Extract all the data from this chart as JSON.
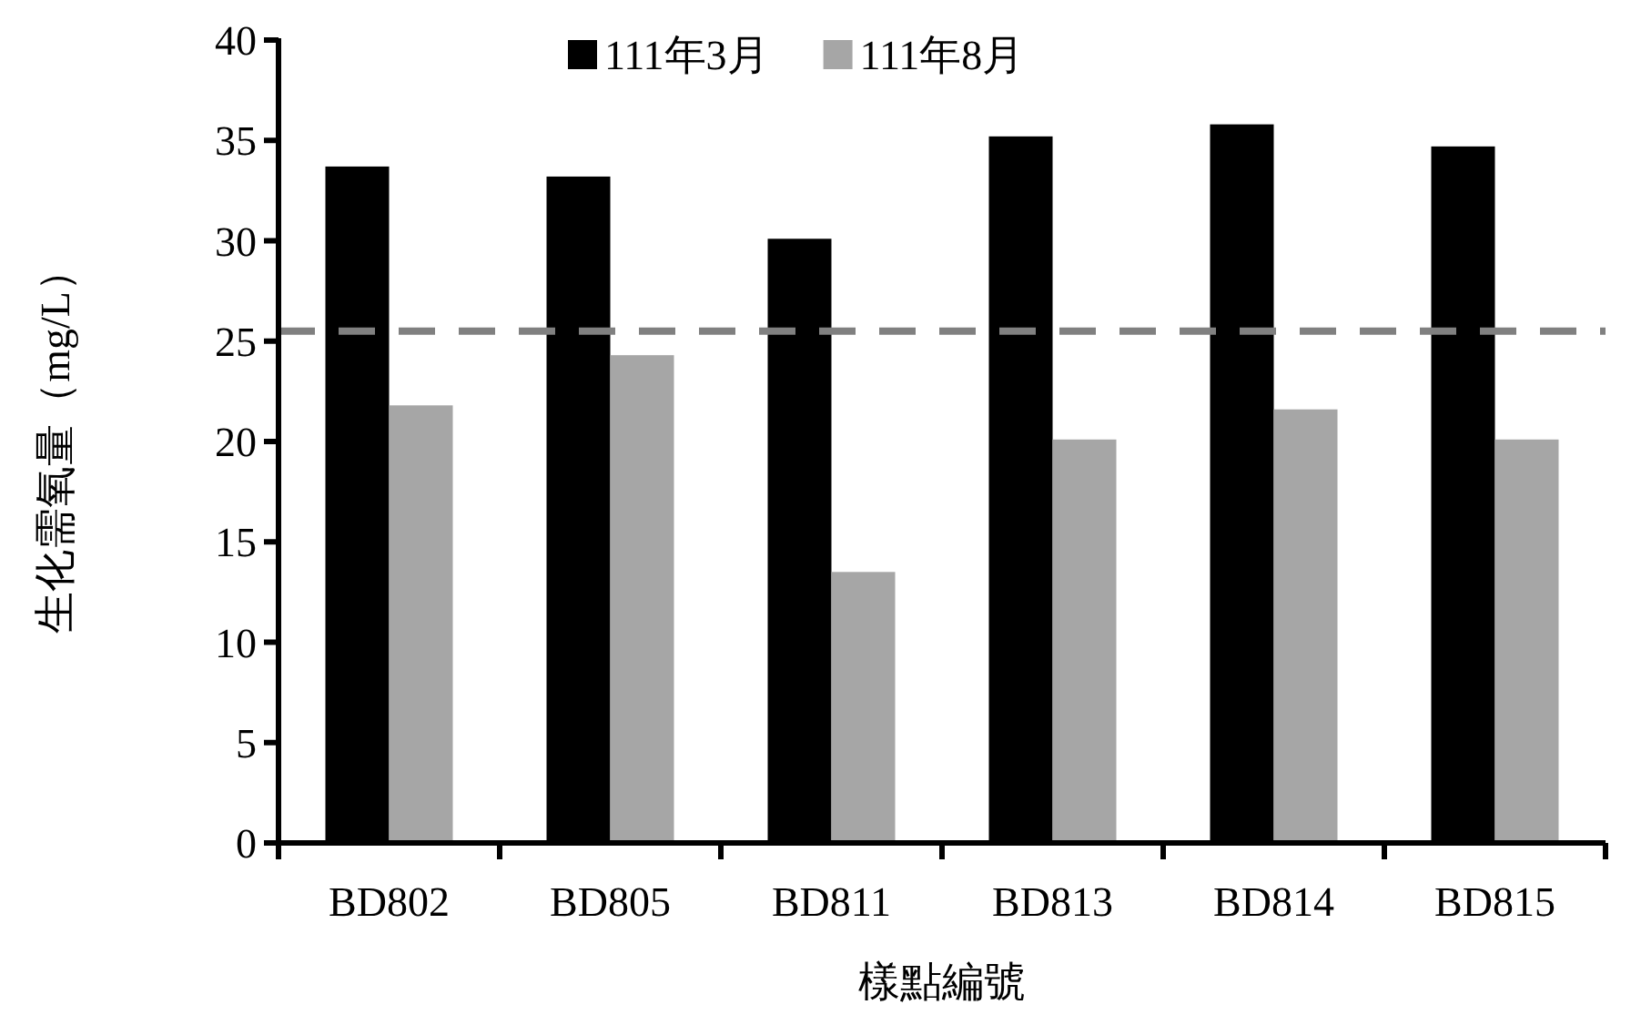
{
  "chart_data": {
    "type": "bar",
    "xlabel": "樣點編號",
    "ylabel": "生化需氧量（mg/L）",
    "categories": [
      "BD802",
      "BD805",
      "BD811",
      "BD813",
      "BD814",
      "BD815"
    ],
    "series": [
      {
        "name": "111年3月",
        "color": "#000000",
        "values": [
          33.7,
          33.2,
          30.1,
          35.2,
          35.8,
          34.7
        ]
      },
      {
        "name": "111年8月",
        "color": "#a6a6a6",
        "values": [
          21.8,
          24.3,
          13.5,
          20.1,
          21.6,
          20.1
        ]
      }
    ],
    "ylim": [
      0,
      40
    ],
    "yticks": [
      0,
      5,
      10,
      15,
      20,
      25,
      30,
      35,
      40
    ],
    "ref_lines": [
      {
        "axis": "y",
        "value": 25.5,
        "color": "#808080",
        "line_style": "dashed"
      }
    ],
    "legend": "top"
  }
}
